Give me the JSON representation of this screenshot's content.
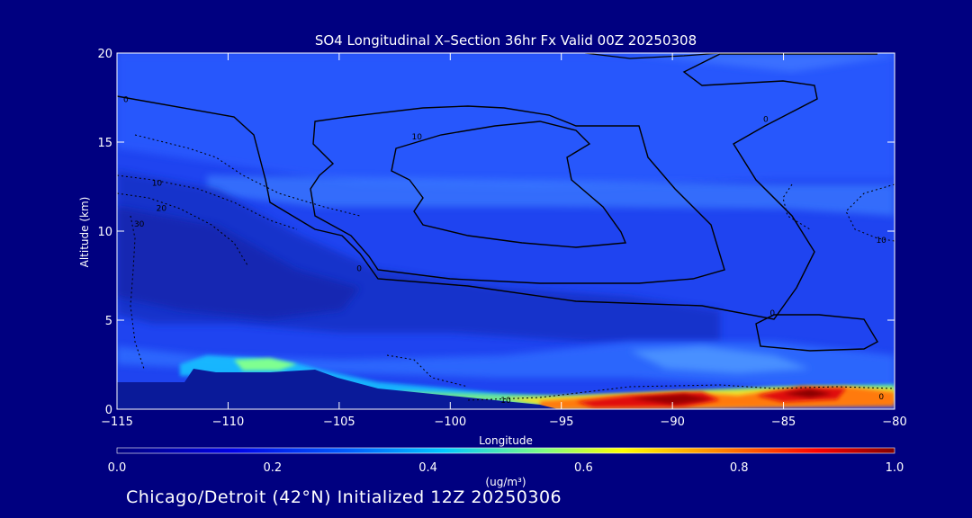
{
  "chart_data": {
    "type": "heatmap",
    "title": "SO4 Longitudinal X–Section 36hr  Fx Valid 00Z 20250308",
    "xlabel": "Longitude",
    "ylabel": "Altitude (km)",
    "xlim": [
      -115,
      -80
    ],
    "ylim": [
      0,
      20
    ],
    "x_ticks": [
      -115,
      -110,
      -105,
      -100,
      -95,
      -90,
      -85,
      -80
    ],
    "x_tick_labels": [
      "−115",
      "−110",
      "−105",
      "−100",
      "−95",
      "−90",
      "−85",
      "−80"
    ],
    "y_ticks": [
      0,
      5,
      10,
      15,
      20
    ],
    "y_tick_labels": [
      "0",
      "5",
      "10",
      "15",
      "20"
    ],
    "colorbar": {
      "label": "(ug/m³)",
      "range": [
        0.0,
        1.0
      ],
      "ticks": [
        0.0,
        0.2,
        0.4,
        0.6,
        0.8,
        1.0
      ],
      "tick_labels": [
        "0.0",
        "0.2",
        "0.4",
        "0.6",
        "0.8",
        "1.0"
      ]
    },
    "contour_labels": [
      {
        "text": "0",
        "lon": -114.6,
        "alt": 17.4
      },
      {
        "text": "10",
        "lon": -101.5,
        "alt": 15.3
      },
      {
        "text": "0",
        "lon": -85.8,
        "alt": 16.3
      },
      {
        "text": "10",
        "lon": -113.2,
        "alt": 12.7
      },
      {
        "text": "20",
        "lon": -113.0,
        "alt": 11.3
      },
      {
        "text": "30",
        "lon": -114.0,
        "alt": 10.4
      },
      {
        "text": "0",
        "lon": -104.1,
        "alt": 7.9
      },
      {
        "text": "10",
        "lon": -80.6,
        "alt": 9.5
      },
      {
        "text": "0",
        "lon": -85.5,
        "alt": 5.4
      },
      {
        "text": "0",
        "lon": -80.6,
        "alt": 0.7
      },
      {
        "text": "10",
        "lon": -97.5,
        "alt": 0.5
      }
    ]
  },
  "footer": "Chicago/Detroit (42°N) Initialized 12Z 20250306",
  "colors": {
    "background": "#000080",
    "field_base": "#1f44f0",
    "terrain": "#0a1a99",
    "contour_solid": "#000000",
    "contour_dashed": "#000000"
  }
}
